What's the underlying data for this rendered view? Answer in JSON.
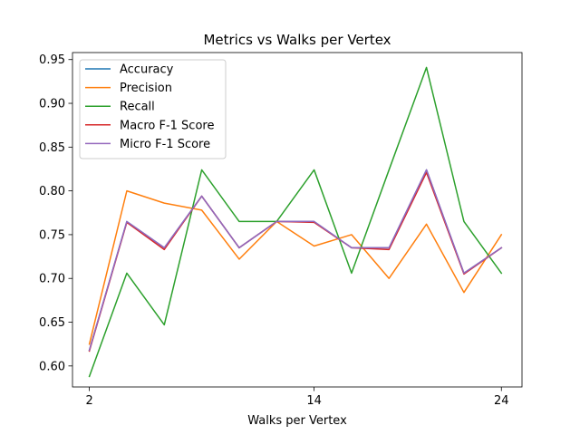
{
  "chart_data": {
    "type": "line",
    "title": "Metrics vs Walks per Vertex",
    "xlabel": "Walks per Vertex",
    "ylabel": "",
    "x": [
      2,
      4,
      6,
      8,
      10,
      12,
      14,
      16,
      18,
      20,
      22,
      24
    ],
    "xticks": [
      2,
      14,
      24
    ],
    "xlim": [
      1.1,
      25.1
    ],
    "ylim": [
      0.576,
      0.958
    ],
    "yticks": [
      0.6,
      0.65,
      0.7,
      0.75,
      0.8,
      0.85,
      0.9,
      0.95
    ],
    "grid": false,
    "legend_position": "top-left",
    "series": [
      {
        "name": "Accuracy",
        "color": "#1f77b4",
        "values": [
          0.618,
          0.765,
          0.735,
          0.794,
          0.735,
          0.765,
          0.765,
          0.735,
          0.735,
          0.824,
          0.706,
          0.735
        ]
      },
      {
        "name": "Precision",
        "color": "#ff7f0e",
        "values": [
          0.625,
          0.8,
          0.786,
          0.778,
          0.722,
          0.765,
          0.737,
          0.75,
          0.7,
          0.762,
          0.684,
          0.75
        ]
      },
      {
        "name": "Recall",
        "color": "#2ca02c",
        "values": [
          0.588,
          0.706,
          0.647,
          0.824,
          0.765,
          0.765,
          0.824,
          0.706,
          0.824,
          0.941,
          0.765,
          0.706
        ]
      },
      {
        "name": "Macro F-1 Score",
        "color": "#d62728",
        "values": [
          0.617,
          0.764,
          0.733,
          0.794,
          0.735,
          0.765,
          0.764,
          0.735,
          0.733,
          0.821,
          0.705,
          0.735
        ]
      },
      {
        "name": "Micro F-1 Score",
        "color": "#9467bd",
        "values": [
          0.618,
          0.765,
          0.735,
          0.794,
          0.735,
          0.765,
          0.765,
          0.735,
          0.735,
          0.824,
          0.706,
          0.735
        ]
      }
    ]
  }
}
